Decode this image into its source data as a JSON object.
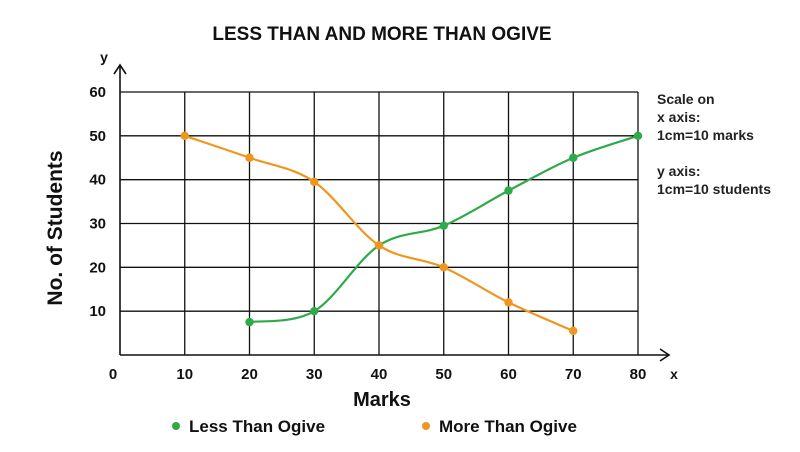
{
  "chart_data": {
    "type": "line",
    "title": "LESS THAN AND MORE THAN OGIVE",
    "xlabel": "Marks",
    "ylabel": "No. of Students",
    "x_axis_letter": "x",
    "y_axis_letter": "y",
    "origin_label": "0",
    "xlim": [
      0,
      80
    ],
    "ylim": [
      0,
      60
    ],
    "x_ticks": [
      10,
      20,
      30,
      40,
      50,
      60,
      70,
      80
    ],
    "y_ticks": [
      10,
      20,
      30,
      40,
      50,
      60
    ],
    "grid": true,
    "legend_position": "bottom",
    "series": [
      {
        "name": "Less Than Ogive",
        "color": "#2eaa4a",
        "x": [
          20,
          30,
          40,
          50,
          60,
          70,
          80
        ],
        "y": [
          7.5,
          10,
          25,
          29.5,
          37.5,
          45,
          50
        ]
      },
      {
        "name": "More Than Ogive",
        "color": "#f0961e",
        "x": [
          10,
          20,
          30,
          40,
          50,
          60,
          70
        ],
        "y": [
          50,
          45,
          39.5,
          25,
          20,
          12,
          5.5
        ]
      }
    ],
    "scale_note": [
      "Scale on",
      "x axis:",
      "1cm=10 marks",
      "",
      "y axis:",
      "1cm=10 students"
    ]
  }
}
